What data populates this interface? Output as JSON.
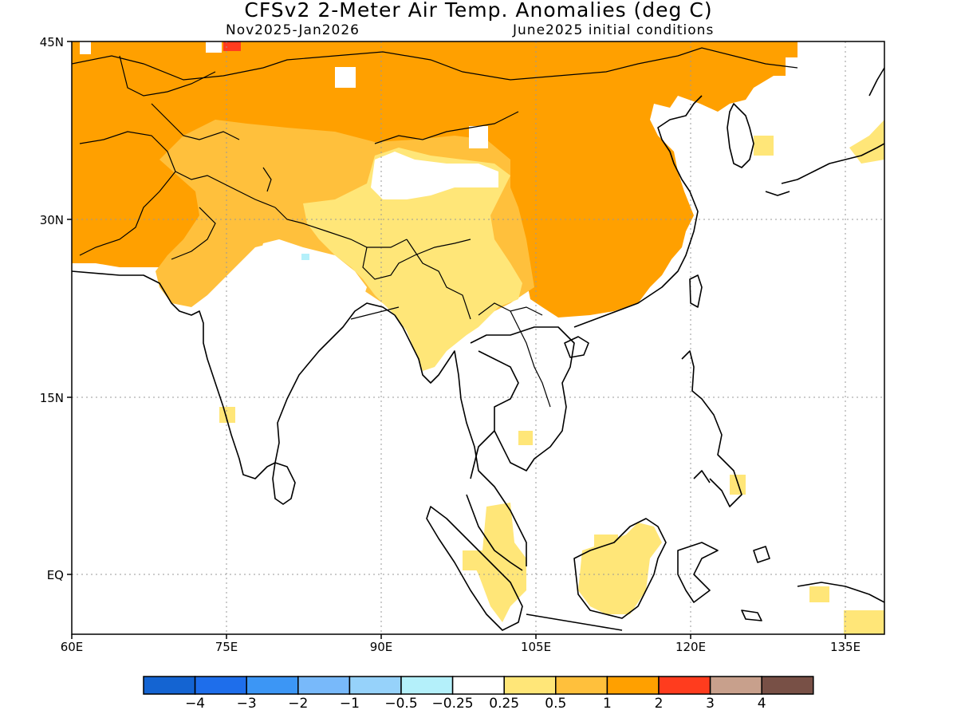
{
  "title": "CFSv2 2-Meter Air Temp. Anomalies (deg C)",
  "subtitle_left": "Nov2025-Jan2026",
  "subtitle_right": "June2025 initial conditions",
  "lat_labels": [
    "45N",
    "30N",
    "15N",
    "EQ"
  ],
  "lon_labels": [
    "60E",
    "75E",
    "90E",
    "105E",
    "120E",
    "135E"
  ],
  "colorbar": {
    "colors": [
      "#1464d2",
      "#1e6eeb",
      "#3c96f5",
      "#78b9fa",
      "#96d2fa",
      "#b4f0fa",
      "#ffffff",
      "#ffe678",
      "#ffc03c",
      "#ffa000",
      "#ff3c1e",
      "#c8a08c",
      "#785046"
    ],
    "labels": [
      "-4",
      "-3",
      "-2",
      "-1",
      "-0.5",
      "-0.25",
      "0.25",
      "0.5",
      "1",
      "2",
      "3",
      "4"
    ]
  },
  "colors": {
    "anom_2": "#ffa000",
    "anom_1": "#ffc03c",
    "anom_05": "#ffe678",
    "anom_3": "#ff3c1e",
    "anom_neg025": "#b4f0fa",
    "background": "#ffffff"
  }
}
